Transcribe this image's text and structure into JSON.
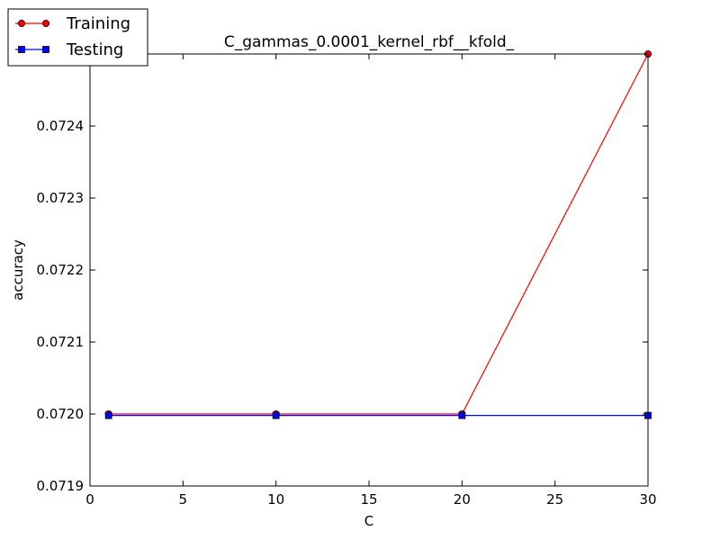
{
  "chart_data": {
    "type": "line",
    "title": "C_gammas_0.0001_kernel_rbf__kfold_",
    "xlabel": "C",
    "ylabel": "accuracy",
    "xlim": [
      0,
      30
    ],
    "ylim": [
      0.0719,
      0.0725
    ],
    "xticks": [
      0,
      5,
      10,
      15,
      20,
      25,
      30
    ],
    "xtick_labels": [
      "0",
      "5",
      "10",
      "15",
      "20",
      "25",
      "30"
    ],
    "yticks": [
      0.0719,
      0.072,
      0.0721,
      0.0722,
      0.0723,
      0.0724
    ],
    "ytick_labels": [
      "0.0719",
      "0.0720",
      "0.0721",
      "0.0722",
      "0.0723",
      "0.0724"
    ],
    "grid": false,
    "legend_position": "top-left, outside plot",
    "x": [
      1,
      10,
      20,
      30
    ],
    "series": [
      {
        "name": "Training",
        "values": [
          0.072,
          0.072,
          0.072,
          0.0725
        ],
        "color": "#ff0000",
        "marker": "circle"
      },
      {
        "name": "Testing",
        "values": [
          0.071998,
          0.071998,
          0.071998,
          0.071998
        ],
        "color": "#0000ff",
        "marker": "square"
      }
    ]
  }
}
